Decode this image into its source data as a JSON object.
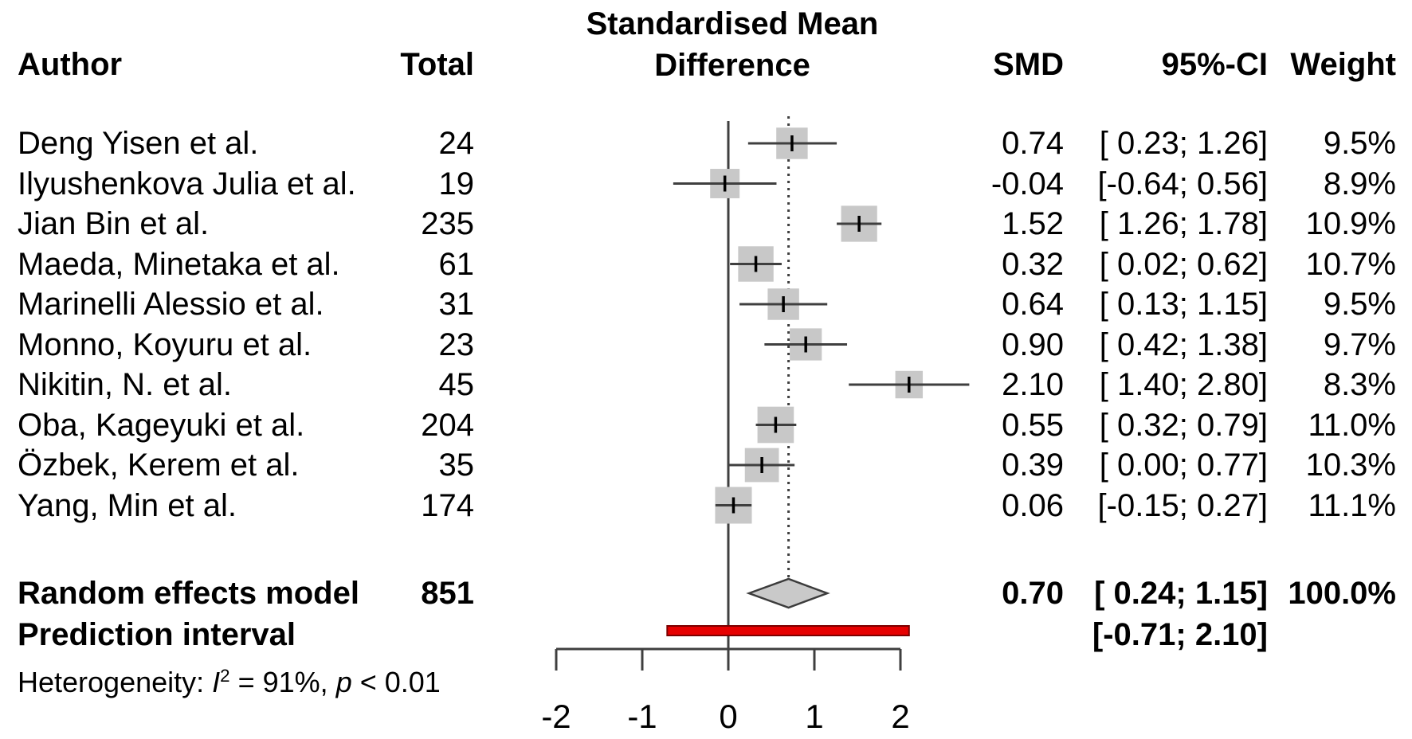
{
  "header": {
    "title_line1": "Standardised Mean",
    "title_line2": "Difference",
    "col_author": "Author",
    "col_total": "Total",
    "col_smd": "SMD",
    "col_ci": "95%-CI",
    "col_weight": "Weight"
  },
  "colors": {
    "square": "#c8c8c8",
    "diamond_fill": "#c9c9c9",
    "diamond_border": "#3c3c3c",
    "prediction_bar_fill": "#e60000",
    "prediction_bar_border": "#7c0000",
    "line": "#3f3f3f",
    "text": "#000000"
  },
  "chart_data": {
    "type": "scatter",
    "variant": "forest_plot",
    "title": "Standardised Mean Difference",
    "effect_measure": "SMD",
    "x_ticks": [
      -2,
      -1,
      0,
      1,
      2
    ],
    "x_tick_labels": [
      "-2",
      "-1",
      "0",
      "1",
      "2"
    ],
    "xlim": [
      -2.4,
      2.9
    ],
    "reference_line": 0,
    "pooled_effect_line": 0.7,
    "grid": false,
    "studies": [
      {
        "author": "Deng Yisen et al.",
        "total": "24",
        "smd": 0.74,
        "ci": [
          0.23,
          1.26
        ],
        "smd_text": "0.74",
        "ci_text": "[ 0.23; 1.26]",
        "weight_pct": 9.5,
        "weight_text": "9.5%"
      },
      {
        "author": "Ilyushenkova Julia et al.",
        "total": "19",
        "smd": -0.04,
        "ci": [
          -0.64,
          0.56
        ],
        "smd_text": "-0.04",
        "ci_text": "[-0.64; 0.56]",
        "weight_pct": 8.9,
        "weight_text": "8.9%"
      },
      {
        "author": "Jian Bin et al.",
        "total": "235",
        "smd": 1.52,
        "ci": [
          1.26,
          1.78
        ],
        "smd_text": "1.52",
        "ci_text": "[ 1.26; 1.78]",
        "weight_pct": 10.9,
        "weight_text": "10.9%"
      },
      {
        "author": "Maeda, Minetaka et al.",
        "total": "61",
        "smd": 0.32,
        "ci": [
          0.02,
          0.62
        ],
        "smd_text": "0.32",
        "ci_text": "[ 0.02; 0.62]",
        "weight_pct": 10.7,
        "weight_text": "10.7%"
      },
      {
        "author": "Marinelli Alessio et al.",
        "total": "31",
        "smd": 0.64,
        "ci": [
          0.13,
          1.15
        ],
        "smd_text": "0.64",
        "ci_text": "[ 0.13; 1.15]",
        "weight_pct": 9.5,
        "weight_text": "9.5%"
      },
      {
        "author": "Monno, Koyuru et al.",
        "total": "23",
        "smd": 0.9,
        "ci": [
          0.42,
          1.38
        ],
        "smd_text": "0.90",
        "ci_text": "[ 0.42; 1.38]",
        "weight_pct": 9.7,
        "weight_text": "9.7%"
      },
      {
        "author": "Nikitin, N. et al.",
        "total": "45",
        "smd": 2.1,
        "ci": [
          1.4,
          2.8
        ],
        "smd_text": "2.10",
        "ci_text": "[ 1.40; 2.80]",
        "weight_pct": 8.3,
        "weight_text": "8.3%"
      },
      {
        "author": "Oba, Kageyuki et al.",
        "total": "204",
        "smd": 0.55,
        "ci": [
          0.32,
          0.79
        ],
        "smd_text": "0.55",
        "ci_text": "[ 0.32; 0.79]",
        "weight_pct": 11.0,
        "weight_text": "11.0%"
      },
      {
        "author": "Özbek, Kerem et al.",
        "total": "35",
        "smd": 0.39,
        "ci": [
          0.0,
          0.77
        ],
        "smd_text": "0.39",
        "ci_text": "[ 0.00; 0.77]",
        "weight_pct": 10.3,
        "weight_text": "10.3%"
      },
      {
        "author": "Yang, Min et al.",
        "total": "174",
        "smd": 0.06,
        "ci": [
          -0.15,
          0.27
        ],
        "smd_text": "0.06",
        "ci_text": "[-0.15; 0.27]",
        "weight_pct": 11.1,
        "weight_text": "11.1%"
      }
    ],
    "summary": {
      "random_effects": {
        "label": "Random effects model",
        "total": "851",
        "smd": 0.7,
        "ci": [
          0.24,
          1.15
        ],
        "smd_text": "0.70",
        "ci_text": "[ 0.24; 1.15]",
        "weight_text": "100.0%"
      },
      "prediction_interval": {
        "label": "Prediction interval",
        "ci": [
          -0.71,
          2.1
        ],
        "ci_text": "[-0.71; 2.10]"
      }
    },
    "heterogeneity": {
      "prefix": "Heterogeneity: ",
      "stat_italic": "I",
      "stat_sup": "2",
      "mid": " = 91%, ",
      "p_italic": "p",
      "suffix": " < 0.01"
    }
  }
}
